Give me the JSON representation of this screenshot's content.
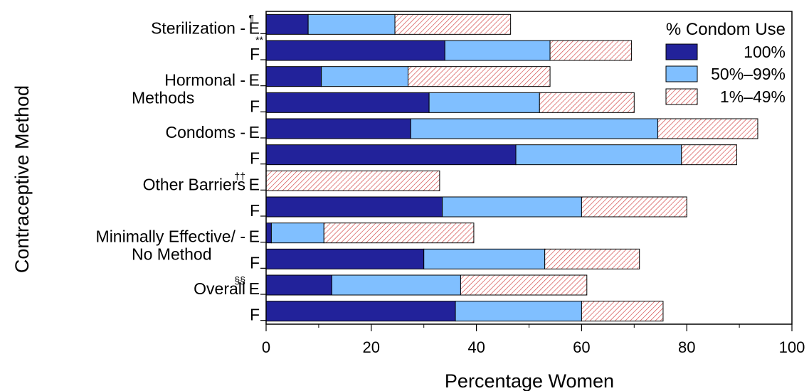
{
  "chart_data": {
    "type": "bar",
    "orientation": "horizontal",
    "stacked": true,
    "xlabel": "Percentage Women",
    "ylabel": "Contraceptive Method",
    "xlim": [
      0,
      100
    ],
    "xticks": [
      0,
      20,
      40,
      60,
      80,
      100
    ],
    "grid": false,
    "legend_position": "top-right",
    "legend_title": "% Condom Use",
    "groups": [
      {
        "label": "Sterilization -",
        "label2": "",
        "sup": "¶"
      },
      {
        "label": "Hormonal -",
        "label2": "Methods",
        "sup": ""
      },
      {
        "label": "Condoms -",
        "label2": "",
        "sup": ""
      },
      {
        "label": "Other Barriers",
        "label2": "",
        "sup": "††"
      },
      {
        "label": "Minimally Effective/ -",
        "label2": "No Method",
        "sup": ""
      },
      {
        "label": "Overall",
        "label2": "",
        "sup": "§§"
      }
    ],
    "sub_labels": [
      "E",
      "F"
    ],
    "extra_marks": {
      "sterilization_f": "**"
    },
    "series": [
      {
        "name": "100%",
        "color": "#22229a",
        "pattern": "solid",
        "values": [
          8,
          34,
          10.5,
          31,
          27.5,
          47.5,
          0,
          33.5,
          1,
          30,
          12.5,
          36
        ]
      },
      {
        "name": "50%–99%",
        "color": "#80bfff",
        "pattern": "solid",
        "values": [
          16.5,
          20,
          16.5,
          21,
          47,
          31.5,
          0,
          26.5,
          10,
          23,
          24.5,
          24
        ]
      },
      {
        "name": "1%–49%",
        "color": "#e06060",
        "pattern": "hatched",
        "values": [
          22,
          15.5,
          27,
          18,
          19,
          10.5,
          33,
          20,
          28.5,
          18,
          24,
          15.5
        ]
      }
    ]
  }
}
